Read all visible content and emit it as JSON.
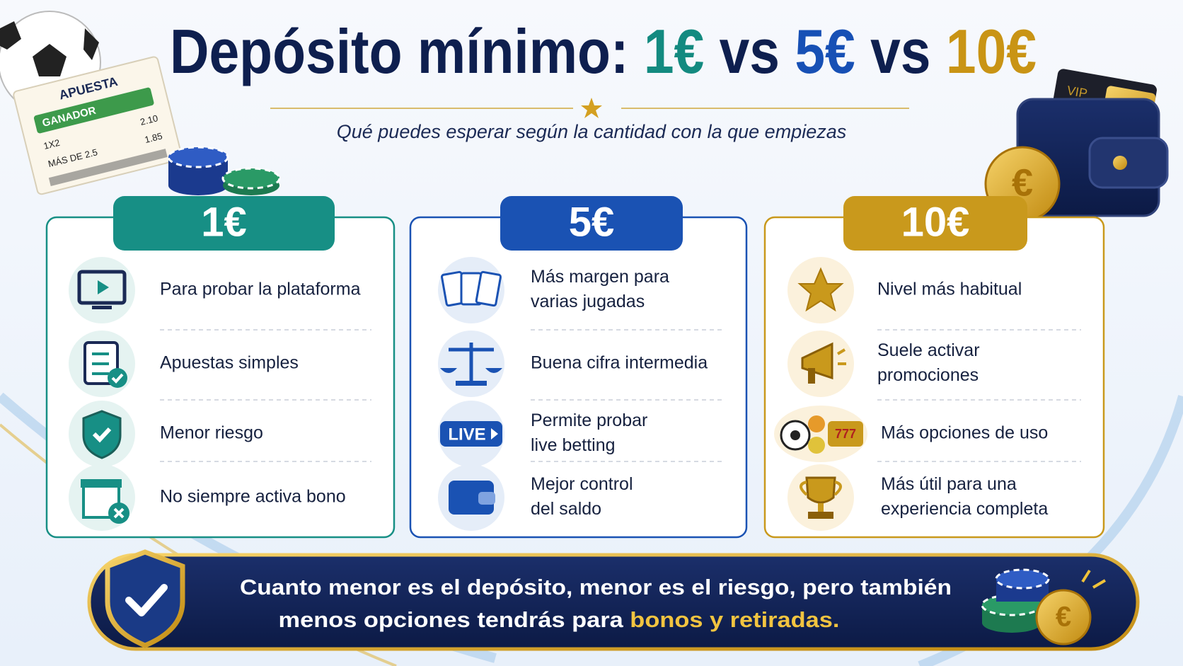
{
  "title_parts": [
    {
      "text": "Depósito mínimo:",
      "color": "#0e1f4f"
    },
    {
      "text": "1€",
      "color": "#138a80"
    },
    {
      "text": "vs",
      "color": "#0e1f4f"
    },
    {
      "text": "5€",
      "color": "#1750b5"
    },
    {
      "text": "vs",
      "color": "#0e1f4f"
    },
    {
      "text": "10€",
      "color": "#c99415"
    }
  ],
  "subtitle": "Qué puedes esperar según la cantidad con la que empiezas",
  "cards": [
    {
      "label": "1€",
      "color": "#178f85",
      "tint": "#e5f3f1",
      "items": [
        [
          "Para probar la plataforma"
        ],
        [
          "Apuestas simples"
        ],
        [
          "Menor riesgo"
        ],
        [
          "No siempre activa bono"
        ]
      ]
    },
    {
      "label": "5€",
      "color": "#1a52b3",
      "tint": "#e5edf8",
      "items": [
        [
          "Más margen para",
          "varias jugadas"
        ],
        [
          "Buena cifra intermedia"
        ],
        [
          "Permite probar",
          "live betting"
        ],
        [
          "Mejor control",
          "del saldo"
        ]
      ]
    },
    {
      "label": "10€",
      "color": "#c9991c",
      "tint": "#fbf1dc",
      "items": [
        [
          "Nivel más habitual"
        ],
        [
          "Suele activar",
          "promociones"
        ],
        [
          "Más opciones de uso"
        ],
        [
          "Más útil para una",
          "experiencia completa"
        ]
      ]
    }
  ],
  "footer": {
    "line1": "Cuanto menor es el depósito, menor es el riesgo, pero también",
    "line2": "menos opciones tendrás para",
    "highlight": "bonos y retiradas."
  },
  "decor": {
    "ticket_title": "APUESTA",
    "ticket_badge": "GANADOR",
    "ticket_rows": [
      [
        "1X2",
        "2.10"
      ],
      [
        "MÁS DE 2.5",
        "1.85"
      ]
    ],
    "card_text": "VIP",
    "live": "LIVE",
    "slot": "777"
  }
}
